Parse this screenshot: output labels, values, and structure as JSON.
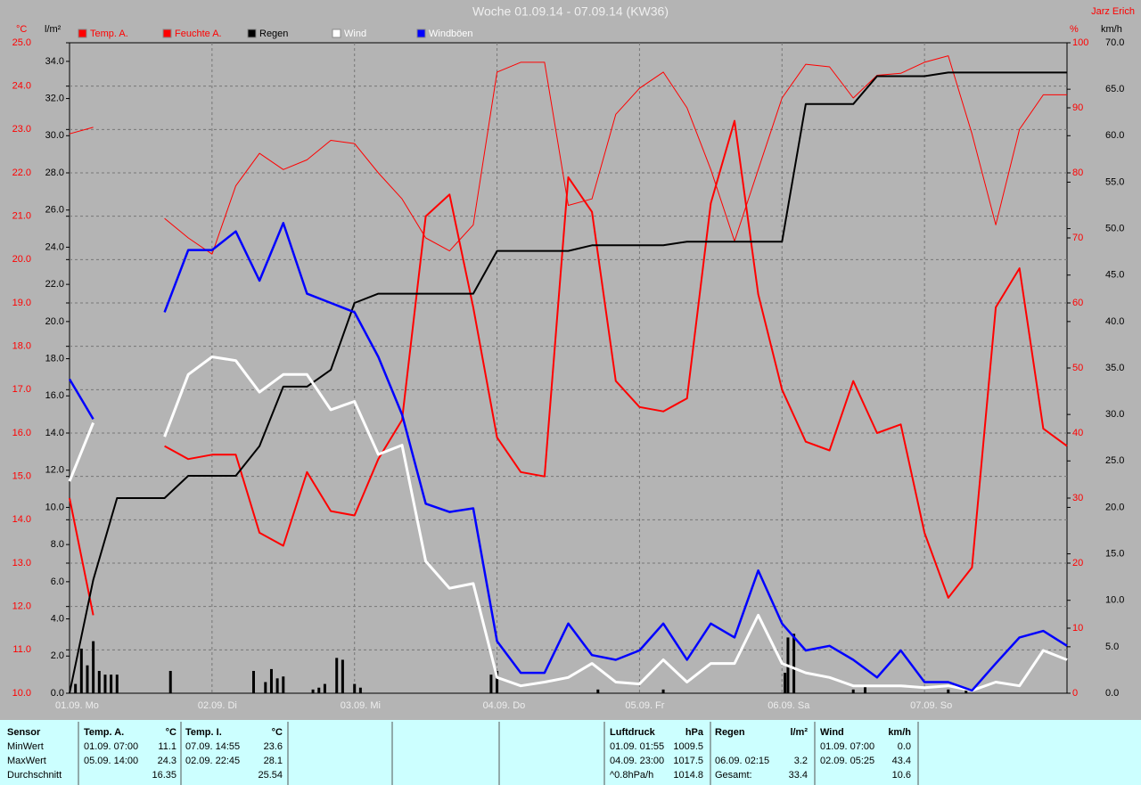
{
  "chart_data": {
    "type": "line",
    "title": "Woche 01.09.14 - 07.09.14 (KW36)",
    "author": "Jarz Erich",
    "axis_units": {
      "y": "°C",
      "y2": "l/m²",
      "y3": "%",
      "y4": "km/h"
    },
    "x": [
      0,
      4,
      8,
      12,
      16,
      20,
      24,
      28,
      32,
      36,
      40,
      44,
      48,
      52,
      56,
      60,
      64,
      68,
      72,
      76,
      80,
      84,
      88,
      92,
      96,
      100,
      104,
      108,
      112,
      116,
      120,
      124,
      128,
      132,
      136,
      140,
      144,
      148,
      152,
      156,
      160,
      164,
      168
    ],
    "xlim": [
      0,
      168
    ],
    "xticks": [
      {
        "value": 0,
        "label": "01.09. Mo"
      },
      {
        "value": 24,
        "label": "02.09. Di"
      },
      {
        "value": 48,
        "label": "03.09. Mi"
      },
      {
        "value": 72,
        "label": "04.09. Do"
      },
      {
        "value": 96,
        "label": "05.09. Fr"
      },
      {
        "value": 120,
        "label": "06.09. Sa"
      },
      {
        "value": 144,
        "label": "07.09. So"
      }
    ],
    "ylim": [
      10,
      25
    ],
    "yticks": [
      {
        "value": 10,
        "label": "10.0"
      },
      {
        "value": 11,
        "label": "11.0"
      },
      {
        "value": 12,
        "label": "12.0"
      },
      {
        "value": 13,
        "label": "13.0"
      },
      {
        "value": 14,
        "label": "14.0"
      },
      {
        "value": 15,
        "label": "15.0"
      },
      {
        "value": 16,
        "label": "16.0"
      },
      {
        "value": 17,
        "label": "17.0"
      },
      {
        "value": 18,
        "label": "18.0"
      },
      {
        "value": 19,
        "label": "19.0"
      },
      {
        "value": 20,
        "label": "20.0"
      },
      {
        "value": 21,
        "label": "21.0"
      },
      {
        "value": 22,
        "label": "22.0"
      },
      {
        "value": 23,
        "label": "23.0"
      },
      {
        "value": 24,
        "label": "24.0"
      },
      {
        "value": 25,
        "label": "25.0"
      }
    ],
    "y2lim": [
      0,
      35
    ],
    "y2ticks": [
      {
        "value": 0,
        "label": "0.0"
      },
      {
        "value": 2,
        "label": "2.0"
      },
      {
        "value": 4,
        "label": "4.0"
      },
      {
        "value": 6,
        "label": "6.0"
      },
      {
        "value": 8,
        "label": "8.0"
      },
      {
        "value": 10,
        "label": "10.0"
      },
      {
        "value": 12,
        "label": "12.0"
      },
      {
        "value": 14,
        "label": "14.0"
      },
      {
        "value": 16,
        "label": "16.0"
      },
      {
        "value": 18,
        "label": "18.0"
      },
      {
        "value": 20,
        "label": "20.0"
      },
      {
        "value": 22,
        "label": "22.0"
      },
      {
        "value": 24,
        "label": "24.0"
      },
      {
        "value": 26,
        "label": "26.0"
      },
      {
        "value": 28,
        "label": "28.0"
      },
      {
        "value": 30,
        "label": "30.0"
      },
      {
        "value": 32,
        "label": "32.0"
      },
      {
        "value": 34,
        "label": "34.0"
      }
    ],
    "y3lim": [
      0,
      100
    ],
    "y3ticks": [
      0,
      10,
      20,
      30,
      40,
      50,
      60,
      70,
      80,
      90,
      100
    ],
    "y4lim": [
      0,
      70
    ],
    "y4ticks": [
      {
        "value": 0,
        "label": "0.0"
      },
      {
        "value": 5,
        "label": "5.0"
      },
      {
        "value": 10,
        "label": "10.0"
      },
      {
        "value": 15,
        "label": "15.0"
      },
      {
        "value": 20,
        "label": "20.0"
      },
      {
        "value": 25,
        "label": "25.0"
      },
      {
        "value": 30,
        "label": "30.0"
      },
      {
        "value": 35,
        "label": "35.0"
      },
      {
        "value": 40,
        "label": "40.0"
      },
      {
        "value": 45,
        "label": "45.0"
      },
      {
        "value": 50,
        "label": "50.0"
      },
      {
        "value": 55,
        "label": "55.0"
      },
      {
        "value": 60,
        "label": "60.0"
      },
      {
        "value": 65,
        "label": "65.0"
      },
      {
        "value": 70,
        "label": "70.0"
      }
    ],
    "grid": true,
    "series": [
      {
        "name": "Temp. A.",
        "color": "#ff0000",
        "axis": "y",
        "width": 2,
        "values": [
          14.5,
          11.8,
          null,
          null,
          15.7,
          15.4,
          15.5,
          15.5,
          13.7,
          13.4,
          15.1,
          14.2,
          14.1,
          15.4,
          16.3,
          21.0,
          21.5,
          18.9,
          15.9,
          15.1,
          15.0,
          21.9,
          21.1,
          17.2,
          16.6,
          16.5,
          16.8,
          21.3,
          23.2,
          19.2,
          17.0,
          15.8,
          15.6,
          17.2,
          16.0,
          16.2,
          13.7,
          12.2,
          12.9,
          18.9,
          19.8,
          16.1,
          15.7
        ]
      },
      {
        "name": "Feuchte A.",
        "color": "#ff0000",
        "axis": "y3",
        "width": 1,
        "values": [
          86,
          87,
          null,
          null,
          73,
          70,
          67.5,
          78,
          83,
          80.5,
          82,
          85,
          84.5,
          80,
          76,
          70,
          68,
          72,
          95.5,
          97,
          97,
          75,
          76,
          89,
          93,
          95.5,
          90,
          80.5,
          69.5,
          80.5,
          91.5,
          96.7,
          96.3,
          91.5,
          95,
          95.3,
          97,
          98,
          86,
          72,
          86.7,
          92,
          92
        ]
      },
      {
        "name": "Regen",
        "color": "#000000",
        "axis": "y2",
        "width": 2,
        "values": [
          0,
          6.1,
          10.5,
          10.5,
          10.5,
          11.7,
          11.7,
          11.7,
          13.3,
          16.5,
          16.5,
          17.4,
          21.0,
          21.5,
          21.5,
          21.5,
          21.5,
          21.5,
          23.8,
          23.8,
          23.8,
          23.8,
          24.1,
          24.1,
          24.1,
          24.1,
          24.3,
          24.3,
          24.3,
          24.3,
          24.3,
          31.7,
          31.7,
          31.7,
          33.2,
          33.2,
          33.2,
          33.4,
          33.4,
          33.4,
          33.4,
          33.4,
          33.4
        ]
      },
      {
        "name": "Wind",
        "color": "#ffffff",
        "axis": "y4",
        "width": 3,
        "values": [
          22.8,
          29.1,
          null,
          null,
          27.6,
          34.3,
          36.2,
          35.8,
          32.4,
          34.3,
          34.3,
          30.5,
          31.4,
          25.7,
          26.7,
          14.2,
          11.3,
          11.8,
          1.7,
          0.8,
          1.2,
          1.7,
          3.2,
          1.2,
          1.0,
          3.6,
          1.2,
          3.2,
          3.2,
          8.4,
          3.2,
          2.2,
          1.7,
          0.8,
          0.8,
          0.8,
          0.6,
          0.8,
          0.3,
          1.2,
          0.8,
          4.6,
          3.6
        ]
      },
      {
        "name": "Windböen",
        "color": "#0000ff",
        "axis": "y4",
        "width": 2.5,
        "values": [
          33.8,
          29.5,
          null,
          null,
          41.0,
          47.7,
          47.7,
          49.7,
          44.4,
          50.6,
          43.0,
          42.0,
          41.0,
          36.2,
          30.0,
          20.4,
          19.5,
          19.9,
          5.6,
          2.2,
          2.2,
          7.5,
          4.1,
          3.6,
          4.6,
          7.5,
          3.6,
          7.5,
          6.0,
          13.2,
          7.5,
          4.6,
          5.1,
          3.6,
          1.7,
          4.6,
          1.2,
          1.2,
          0.3,
          3.2,
          6.0,
          6.7,
          5.1
        ]
      }
    ],
    "bars": {
      "color": "#000000",
      "axis": "y2",
      "x": [
        1,
        2,
        3,
        4,
        5,
        6,
        7,
        8,
        17,
        31,
        33,
        34,
        35,
        36,
        41,
        42,
        43,
        45,
        46,
        48,
        49,
        71,
        72,
        89,
        100,
        120.5,
        121,
        122,
        132,
        134,
        148,
        151
      ],
      "values": [
        0.5,
        2.4,
        1.5,
        2.8,
        1.2,
        1.0,
        1.0,
        1.0,
        1.2,
        1.2,
        0.6,
        1.3,
        0.8,
        0.9,
        0.2,
        0.3,
        0.5,
        1.9,
        1.8,
        0.5,
        0.3,
        1.0,
        1.2,
        0.2,
        0.2,
        1.1,
        3.0,
        3.2,
        0.2,
        0.4,
        0.2,
        0.2
      ]
    }
  },
  "table": {
    "labels": [
      "Sensor",
      "MinWert",
      "MaxWert",
      "Durchschnitt"
    ],
    "groups": [
      {
        "name": "Temp. A.",
        "unit": "°C",
        "min": [
          "01.09. 07:00",
          "11.1"
        ],
        "max": [
          "05.09. 14:00",
          "24.3"
        ],
        "avg": {
          "value": "16.35"
        }
      },
      {
        "name": "Temp. I.",
        "unit": "°C",
        "min": [
          "07.09. 14:55",
          "23.6"
        ],
        "max": [
          "02.09. 22:45",
          "28.1"
        ],
        "avg": {
          "value": "25.54"
        }
      },
      {
        "name": "Luftdruck",
        "unit": "hPa",
        "min": [
          "01.09. 01:55",
          "1009.5"
        ],
        "max": [
          "04.09. 23:00",
          "1017.5"
        ],
        "avg": {
          "label": "^0.8hPa/h",
          "value": "1014.8"
        }
      },
      {
        "name": "Regen",
        "unit": "l/m²",
        "max": [
          "06.09. 02:15",
          "3.2"
        ],
        "avg": {
          "label": "Gesamt:",
          "value": "33.4"
        }
      },
      {
        "name": "Wind",
        "unit": "km/h",
        "min": [
          "01.09. 07:00",
          "0.0"
        ],
        "max": [
          "02.09. 05:25",
          "43.4"
        ],
        "avg": {
          "value": "10.6"
        }
      }
    ]
  }
}
